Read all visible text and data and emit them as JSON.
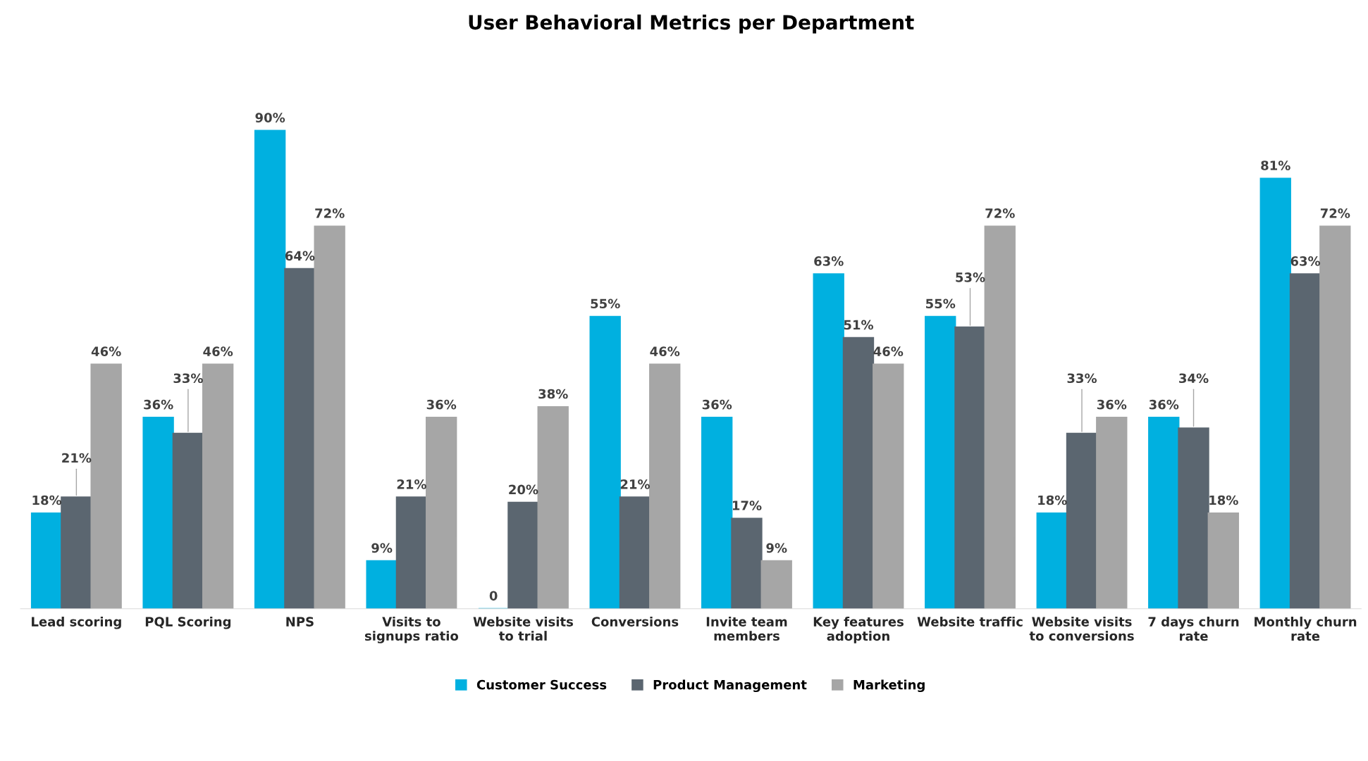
{
  "chart_data": {
    "type": "bar",
    "title": "User Behavioral Metrics per Department",
    "categories": [
      "Lead scoring",
      "PQL Scoring",
      "NPS",
      "Visits to\nsignups ratio",
      "Website visits\nto trial",
      "Conversions",
      "Invite team\nmembers",
      "Key features\nadoption",
      "Website traffic",
      "Website visits\nto conversions",
      "7 days churn\nrate",
      "Monthly churn\nrate"
    ],
    "series": [
      {
        "name": "Customer Success",
        "color": "#00b0e0",
        "values": [
          18,
          36,
          90,
          9,
          0,
          55,
          36,
          63,
          55,
          18,
          36,
          81
        ],
        "value_labels": [
          "18%",
          "36%",
          "90%",
          "9%",
          "0",
          "55%",
          "36%",
          "63%",
          "55%",
          "18%",
          "36%",
          "81%"
        ]
      },
      {
        "name": "Product Management",
        "color": "#5b6670",
        "values": [
          21,
          33,
          64,
          21,
          20,
          21,
          17,
          51,
          53,
          33,
          34,
          63
        ],
        "value_labels": [
          "21%",
          "33%",
          "64%",
          "21%",
          "20%",
          "21%",
          "17%",
          "51%",
          "53%",
          "33%",
          "34%",
          "63%"
        ]
      },
      {
        "name": "Marketing",
        "color": "#a6a6a6",
        "values": [
          46,
          46,
          72,
          36,
          38,
          46,
          9,
          46,
          72,
          36,
          18,
          72
        ],
        "value_labels": [
          "46%",
          "46%",
          "72%",
          "36%",
          "38%",
          "46%",
          "9%",
          "46%",
          "72%",
          "36%",
          "18%",
          "72%"
        ]
      }
    ],
    "legend": "bottom"
  }
}
